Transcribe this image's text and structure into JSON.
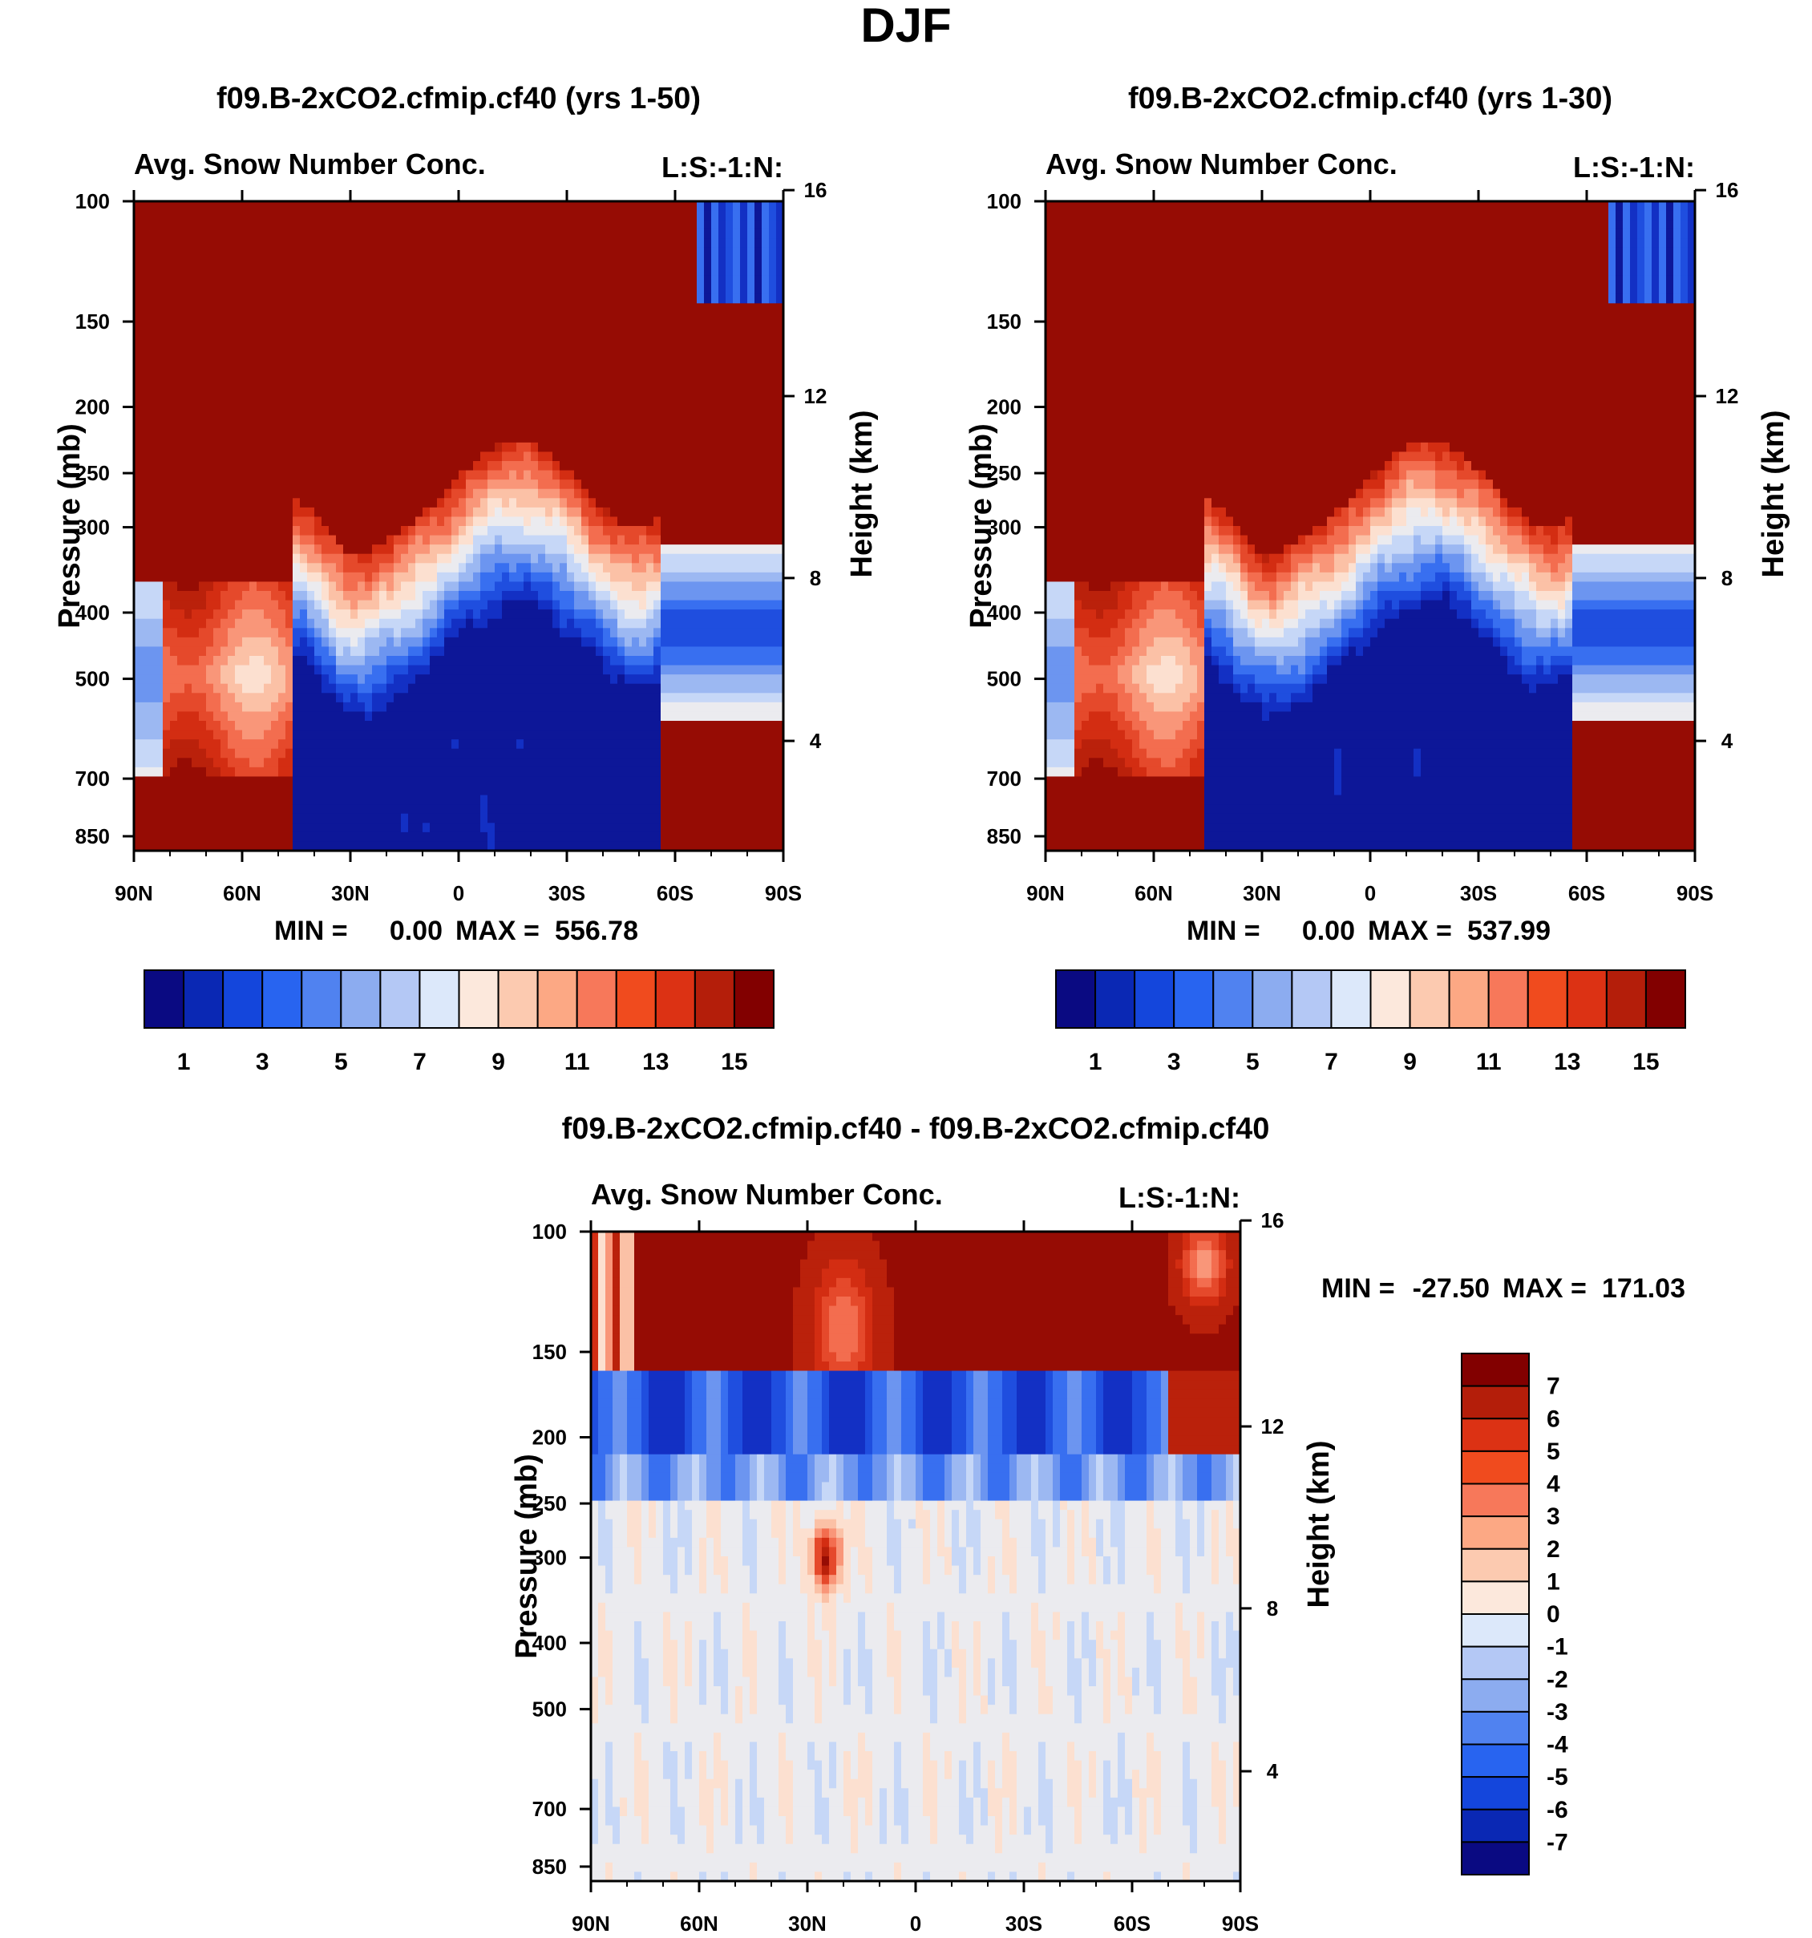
{
  "chart_data": {
    "title": "DJF",
    "type": "heatmap",
    "x_ticks": [
      "90N",
      "60N",
      "30N",
      "0",
      "30S",
      "60S",
      "90S"
    ],
    "pressure_ticks": [
      100,
      150,
      200,
      250,
      300,
      400,
      500,
      700,
      850
    ],
    "height_ticks": [
      16,
      12,
      8,
      4
    ],
    "ylabel_left": "Pressure (mb)",
    "ylabel_right": "Height (km)",
    "panels": [
      {
        "id": "A",
        "title": "f09.B-2xCO2.cfmip.cf40 (yrs 1-50)",
        "subtitle_left": "Avg. Snow Number Conc.",
        "subtitle_right": "L:S:-1:N:",
        "min_label": "MIN =",
        "min_value": "0.00",
        "max_label": "MAX =",
        "max_value": "556.78",
        "colorbar": {
          "colors": [
            "#0a0a82",
            "#0a28b4",
            "#1446dc",
            "#2864f0",
            "#5082f0",
            "#8cacf0",
            "#b4c8f5",
            "#dce8fa",
            "#fce8dc",
            "#fccab0",
            "#fca884",
            "#f7785a",
            "#f04b1e",
            "#dc3214",
            "#b41e0a",
            "#820000"
          ],
          "labels": [
            "1",
            "3",
            "5",
            "7",
            "9",
            "11",
            "13",
            "15"
          ]
        }
      },
      {
        "id": "B",
        "title": "f09.B-2xCO2.cfmip.cf40 (yrs 1-30)",
        "subtitle_left": "Avg. Snow Number Conc.",
        "subtitle_right": "L:S:-1:N:",
        "min_label": "MIN =",
        "min_value": "0.00",
        "max_label": "MAX =",
        "max_value": "537.99",
        "colorbar": {
          "colors": [
            "#0a0a82",
            "#0a28b4",
            "#1446dc",
            "#2864f0",
            "#5082f0",
            "#8cacf0",
            "#b4c8f5",
            "#dce8fa",
            "#fce8dc",
            "#fccab0",
            "#fca884",
            "#f7785a",
            "#f04b1e",
            "#dc3214",
            "#b41e0a",
            "#820000"
          ],
          "labels": [
            "1",
            "3",
            "5",
            "7",
            "9",
            "11",
            "13",
            "15"
          ]
        }
      },
      {
        "id": "D",
        "title": "f09.B-2xCO2.cfmip.cf40 - f09.B-2xCO2.cfmip.cf40",
        "subtitle_left": "Avg. Snow Number Conc.",
        "subtitle_right": "L:S:-1:N:",
        "min_label": "MIN =",
        "min_value": "-27.50",
        "max_label": "MAX =",
        "max_value": "171.03",
        "colorbar": {
          "colors": [
            "#820000",
            "#b41e0a",
            "#dc3214",
            "#f04b1e",
            "#f7785a",
            "#fca884",
            "#fccab0",
            "#fce8dc",
            "#dce8fa",
            "#b4c8f5",
            "#8cacf0",
            "#5082f0",
            "#2864f0",
            "#1446dc",
            "#0a28b4",
            "#0a0a82"
          ],
          "labels": [
            "7",
            "6",
            "5",
            "4",
            "3",
            "2",
            "1",
            "0",
            "-1",
            "-2",
            "-3",
            "-4",
            "-5",
            "-6",
            "-7"
          ]
        }
      }
    ]
  }
}
